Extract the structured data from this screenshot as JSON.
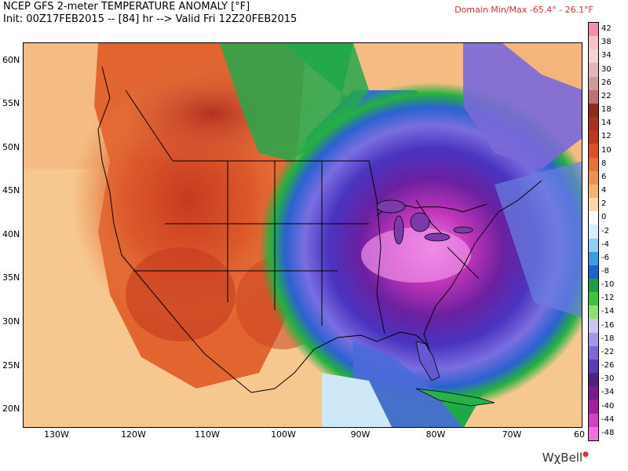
{
  "header": {
    "title": "NCEP GFS 2-meter TEMPERATURE ANOMALY [°F]",
    "subtitle": "Init: 00Z17FEB2015 -- [84] hr --> Valid Fri 12Z20FEB2015",
    "domain_minmax": "Domain Min/Max -65.4° -  26.1°F"
  },
  "axes": {
    "lat_labels": [
      "60N",
      "55N",
      "50N",
      "45N",
      "40N",
      "35N",
      "30N",
      "25N",
      "20N"
    ],
    "lon_labels": [
      "130W",
      "120W",
      "110W",
      "100W",
      "90W",
      "80W",
      "70W",
      "60"
    ]
  },
  "colorbar": {
    "labels": [
      "42",
      "38",
      "34",
      "30",
      "26",
      "22",
      "18",
      "14",
      "12",
      "10",
      "8",
      "6",
      "4",
      "2",
      "0",
      "-2",
      "-4",
      "-6",
      "-8",
      "-10",
      "-12",
      "-14",
      "-16",
      "-18",
      "-22",
      "-26",
      "-30",
      "-34",
      "-40",
      "-44",
      "-48"
    ],
    "colors": [
      "#f48fa8",
      "#f9c0cf",
      "#f2d2d6",
      "#e0b8b8",
      "#d39a9a",
      "#bb7272",
      "#8b2a1d",
      "#a63022",
      "#c0391f",
      "#d6502a",
      "#e4703a",
      "#ee9050",
      "#f5b270",
      "#fbd8a8",
      "#ffffff",
      "#d8eefa",
      "#8fd0f4",
      "#3d9be3",
      "#1f63c9",
      "#1aa04a",
      "#3fc23a",
      "#8ee070",
      "#c8c8ee",
      "#a497e6",
      "#7e68d6",
      "#5a3cb8",
      "#52207e",
      "#7a1a8e",
      "#a0209e",
      "#d040c0",
      "#f070e0"
    ]
  },
  "branding": {
    "logo": "WχBell"
  }
}
